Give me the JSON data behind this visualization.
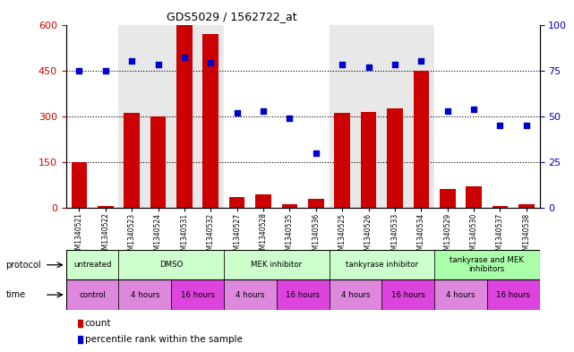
{
  "title": "GDS5029 / 1562722_at",
  "samples": [
    "GSM1340521",
    "GSM1340522",
    "GSM1340523",
    "GSM1340524",
    "GSM1340531",
    "GSM1340532",
    "GSM1340527",
    "GSM1340528",
    "GSM1340535",
    "GSM1340536",
    "GSM1340525",
    "GSM1340526",
    "GSM1340533",
    "GSM1340534",
    "GSM1340529",
    "GSM1340530",
    "GSM1340537",
    "GSM1340538"
  ],
  "counts": [
    150,
    5,
    310,
    300,
    600,
    570,
    35,
    45,
    10,
    30,
    310,
    315,
    325,
    450,
    60,
    70,
    5,
    10
  ],
  "percentiles": [
    75,
    75,
    80,
    78,
    82,
    79,
    52,
    53,
    49,
    30,
    78,
    77,
    78,
    80,
    53,
    54,
    45,
    45
  ],
  "ylim_left": [
    0,
    600
  ],
  "ylim_right": [
    0,
    100
  ],
  "yticks_left": [
    0,
    150,
    300,
    450,
    600
  ],
  "ytick_labels_left": [
    "0",
    "150",
    "300",
    "450",
    "600"
  ],
  "yticks_right": [
    0,
    25,
    50,
    75,
    100
  ],
  "ytick_labels_right": [
    "0",
    "25",
    "50",
    "75",
    "100"
  ],
  "bar_color": "#cc0000",
  "dot_color": "#0000cc",
  "col_bg_colors": [
    "#ffffff",
    "#e8e8e8",
    "#ffffff",
    "#e8e8e8",
    "#ffffff"
  ],
  "col_bg_groups": [
    {
      "start": 0,
      "end": 2
    },
    {
      "start": 2,
      "end": 6
    },
    {
      "start": 6,
      "end": 10
    },
    {
      "start": 10,
      "end": 14
    },
    {
      "start": 14,
      "end": 18
    }
  ],
  "proto_data": [
    {
      "start": 0,
      "end": 2,
      "label": "untreated",
      "color": "#ccffcc"
    },
    {
      "start": 2,
      "end": 6,
      "label": "DMSO",
      "color": "#ccffcc"
    },
    {
      "start": 6,
      "end": 10,
      "label": "MEK inhibitor",
      "color": "#ccffcc"
    },
    {
      "start": 10,
      "end": 14,
      "label": "tankyrase inhibitor",
      "color": "#ccffcc"
    },
    {
      "start": 14,
      "end": 18,
      "label": "tankyrase and MEK\ninhibitors",
      "color": "#aaffaa"
    }
  ],
  "time_data": [
    {
      "start": 0,
      "end": 2,
      "label": "control",
      "color": "#dd88dd"
    },
    {
      "start": 2,
      "end": 4,
      "label": "4 hours",
      "color": "#dd88dd"
    },
    {
      "start": 4,
      "end": 6,
      "label": "16 hours",
      "color": "#dd44dd"
    },
    {
      "start": 6,
      "end": 8,
      "label": "4 hours",
      "color": "#dd88dd"
    },
    {
      "start": 8,
      "end": 10,
      "label": "16 hours",
      "color": "#dd44dd"
    },
    {
      "start": 10,
      "end": 12,
      "label": "4 hours",
      "color": "#dd88dd"
    },
    {
      "start": 12,
      "end": 14,
      "label": "16 hours",
      "color": "#dd44dd"
    },
    {
      "start": 14,
      "end": 16,
      "label": "4 hours",
      "color": "#dd88dd"
    },
    {
      "start": 16,
      "end": 18,
      "label": "16 hours",
      "color": "#dd44dd"
    }
  ],
  "legend_count_label": "count",
  "legend_pct_label": "percentile rank within the sample",
  "ytick_left_color": "#cc0000",
  "ytick_right_color": "#0000cc",
  "dotted_lines": [
    150,
    300,
    450
  ]
}
